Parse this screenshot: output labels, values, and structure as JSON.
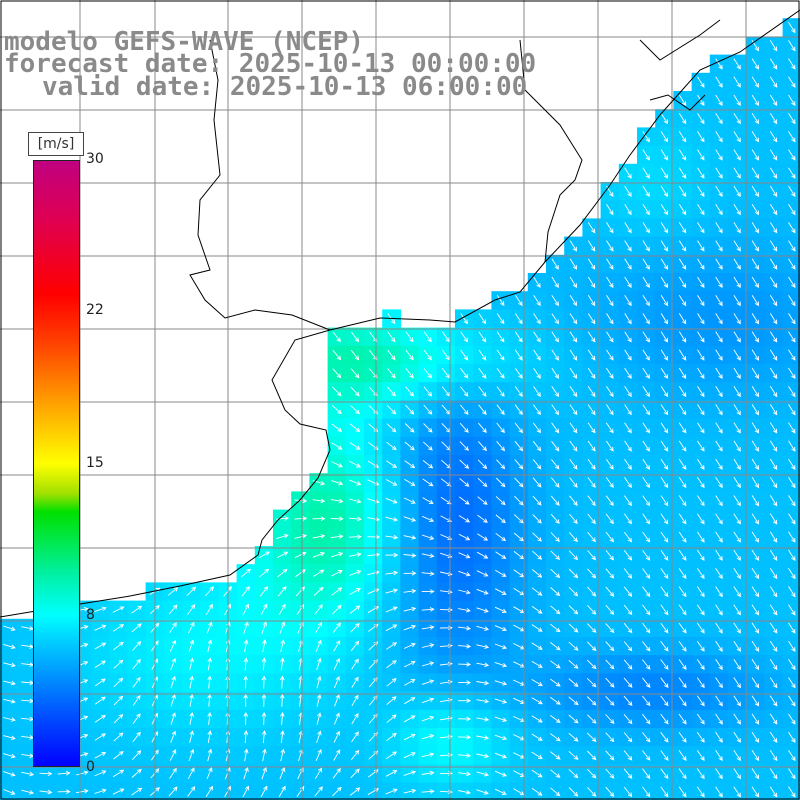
{
  "title": {
    "line1": "modelo GEFS-WAVE (NCEP)",
    "line2": "forecast date: 2025-10-13 00:00:00",
    "line3": "valid date: 2025-10-13 06:00:00"
  },
  "colorbar": {
    "unit": "[m/s]",
    "ticks": [
      "30",
      "22",
      "15",
      "8",
      "0"
    ],
    "tick_values": [
      30,
      22,
      15,
      8,
      0
    ]
  },
  "colors": {
    "land": "#ffffff",
    "grid": "#888888",
    "coast": "#000000",
    "arrow": "#ffffff"
  }
}
